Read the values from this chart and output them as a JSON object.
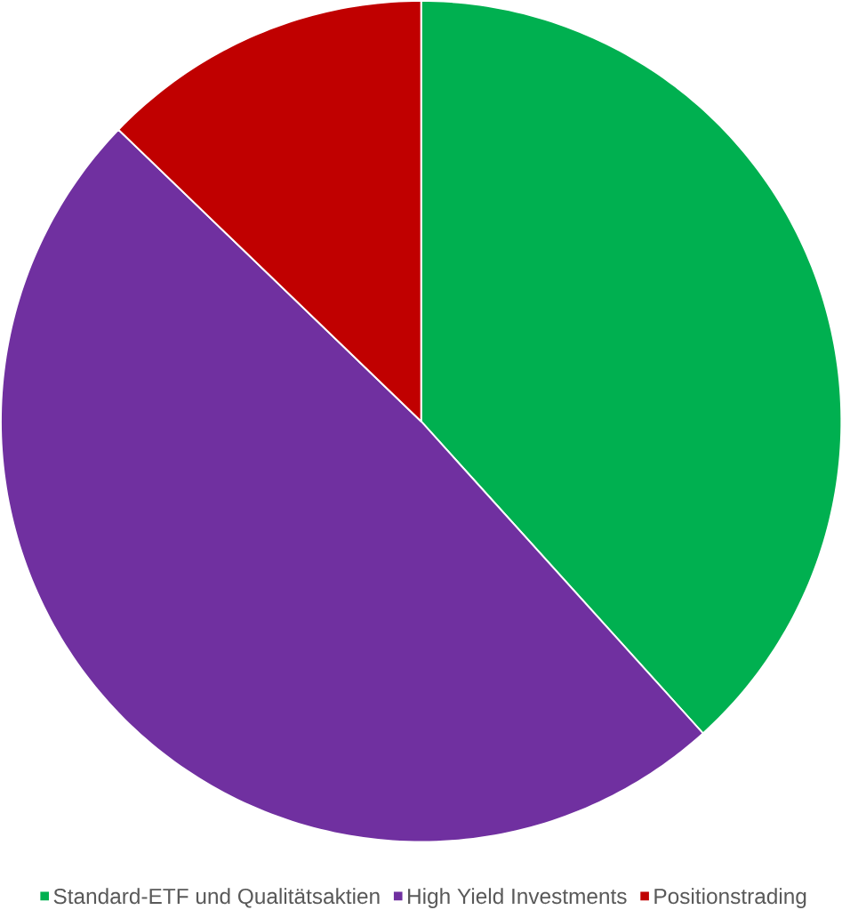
{
  "chart_data": {
    "type": "pie",
    "categories": [
      "Standard-ETF und Qualitätsaktien",
      "High Yield Investments",
      "Positionstrading"
    ],
    "values": [
      38.3,
      48.9,
      12.8
    ],
    "colors": [
      "#00b050",
      "#7030a0",
      "#c00000"
    ],
    "legend": "bottom"
  }
}
